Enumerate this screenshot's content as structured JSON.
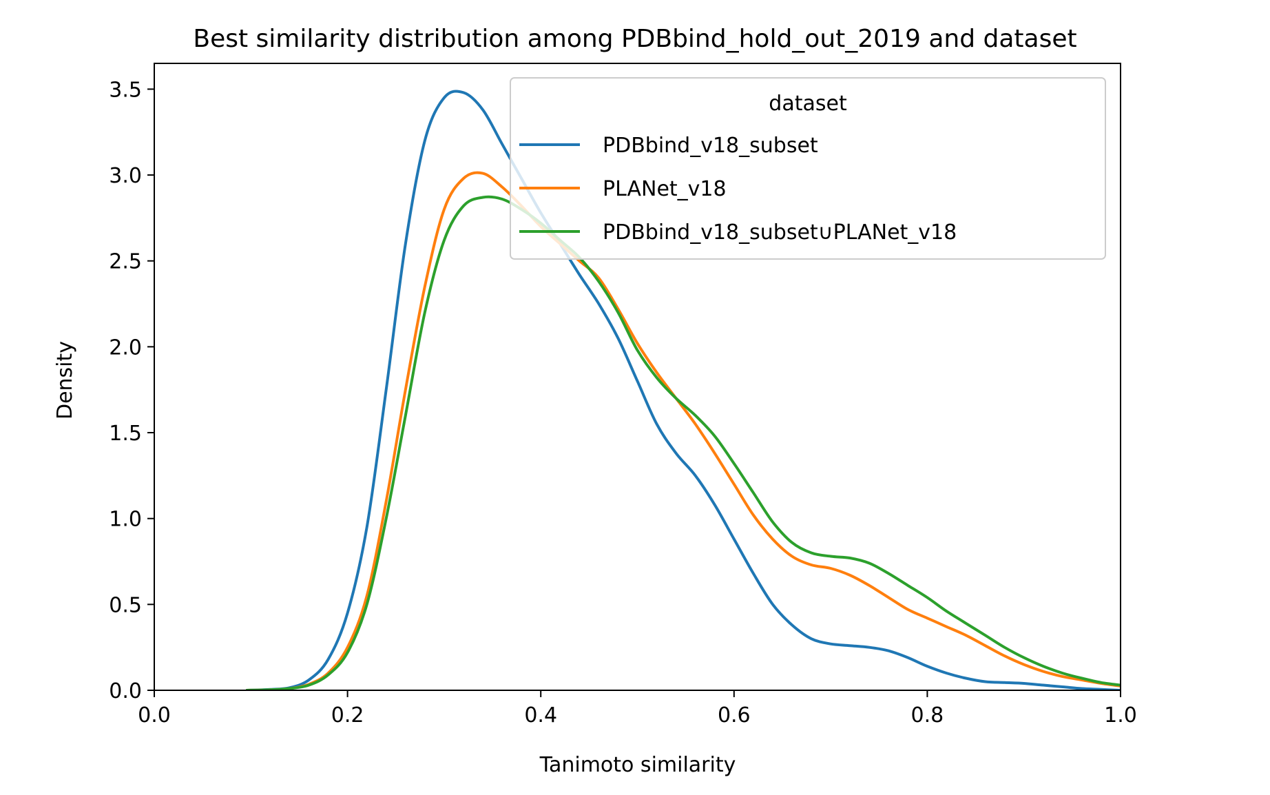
{
  "chart_data": {
    "type": "line",
    "title": "Best similarity distribution among PDBbind_hold_out_2019 and dataset",
    "xlabel": "Tanimoto similarity",
    "ylabel": "Density",
    "xlim": [
      0.0,
      1.0
    ],
    "ylim": [
      0.0,
      3.65
    ],
    "x_ticks": [
      "0.0",
      "0.2",
      "0.4",
      "0.6",
      "0.8",
      "1.0"
    ],
    "y_ticks": [
      "0.0",
      "0.5",
      "1.0",
      "1.5",
      "2.0",
      "2.5",
      "3.0",
      "3.5"
    ],
    "grid": false,
    "legend": {
      "title": "dataset",
      "placement": "top-right"
    },
    "series": [
      {
        "name": "PDBbind_v18_subset",
        "color": "#1f77b4",
        "x": [
          0.095,
          0.12,
          0.14,
          0.16,
          0.18,
          0.2,
          0.22,
          0.24,
          0.26,
          0.28,
          0.3,
          0.32,
          0.34,
          0.36,
          0.38,
          0.4,
          0.42,
          0.44,
          0.46,
          0.48,
          0.5,
          0.52,
          0.54,
          0.56,
          0.58,
          0.6,
          0.62,
          0.64,
          0.66,
          0.68,
          0.7,
          0.72,
          0.74,
          0.76,
          0.78,
          0.8,
          0.82,
          0.84,
          0.86,
          0.88,
          0.9,
          0.92,
          0.94,
          0.96,
          0.98,
          1.0
        ],
        "y": [
          0.0,
          0.005,
          0.015,
          0.06,
          0.18,
          0.45,
          0.95,
          1.75,
          2.6,
          3.2,
          3.45,
          3.48,
          3.38,
          3.18,
          2.98,
          2.78,
          2.6,
          2.42,
          2.25,
          2.05,
          1.8,
          1.55,
          1.38,
          1.25,
          1.08,
          0.88,
          0.68,
          0.5,
          0.38,
          0.3,
          0.27,
          0.26,
          0.25,
          0.23,
          0.19,
          0.14,
          0.1,
          0.07,
          0.05,
          0.045,
          0.04,
          0.03,
          0.02,
          0.01,
          0.005,
          0.0
        ]
      },
      {
        "name": "PLANet_v18",
        "color": "#ff7f0e",
        "x": [
          0.095,
          0.12,
          0.14,
          0.16,
          0.18,
          0.2,
          0.22,
          0.24,
          0.26,
          0.28,
          0.3,
          0.32,
          0.34,
          0.36,
          0.38,
          0.4,
          0.42,
          0.44,
          0.46,
          0.48,
          0.5,
          0.52,
          0.54,
          0.56,
          0.58,
          0.6,
          0.62,
          0.64,
          0.66,
          0.68,
          0.7,
          0.72,
          0.74,
          0.76,
          0.78,
          0.8,
          0.82,
          0.84,
          0.86,
          0.88,
          0.9,
          0.92,
          0.94,
          0.96,
          0.98,
          1.0
        ],
        "y": [
          0.0,
          0.003,
          0.01,
          0.035,
          0.1,
          0.25,
          0.55,
          1.1,
          1.75,
          2.35,
          2.8,
          2.98,
          3.01,
          2.93,
          2.82,
          2.7,
          2.6,
          2.5,
          2.4,
          2.22,
          2.02,
          1.85,
          1.7,
          1.55,
          1.38,
          1.2,
          1.02,
          0.88,
          0.78,
          0.73,
          0.71,
          0.67,
          0.61,
          0.54,
          0.47,
          0.42,
          0.37,
          0.32,
          0.26,
          0.2,
          0.15,
          0.11,
          0.08,
          0.06,
          0.04,
          0.025
        ]
      },
      {
        "name": "PDBbind_v18_subset∪PLANet_v18",
        "color": "#2ca02c",
        "x": [
          0.095,
          0.12,
          0.14,
          0.16,
          0.18,
          0.2,
          0.22,
          0.24,
          0.26,
          0.28,
          0.3,
          0.32,
          0.34,
          0.36,
          0.38,
          0.4,
          0.42,
          0.44,
          0.46,
          0.48,
          0.5,
          0.52,
          0.54,
          0.56,
          0.58,
          0.6,
          0.62,
          0.64,
          0.66,
          0.68,
          0.7,
          0.72,
          0.74,
          0.76,
          0.78,
          0.8,
          0.82,
          0.84,
          0.86,
          0.88,
          0.9,
          0.92,
          0.94,
          0.96,
          0.98,
          1.0
        ],
        "y": [
          0.0,
          0.003,
          0.01,
          0.03,
          0.09,
          0.22,
          0.5,
          1.0,
          1.6,
          2.2,
          2.62,
          2.82,
          2.87,
          2.86,
          2.8,
          2.72,
          2.62,
          2.52,
          2.38,
          2.2,
          1.98,
          1.82,
          1.7,
          1.6,
          1.48,
          1.32,
          1.15,
          0.98,
          0.86,
          0.8,
          0.78,
          0.77,
          0.74,
          0.68,
          0.61,
          0.54,
          0.46,
          0.39,
          0.32,
          0.25,
          0.19,
          0.14,
          0.1,
          0.07,
          0.045,
          0.03
        ]
      }
    ]
  }
}
